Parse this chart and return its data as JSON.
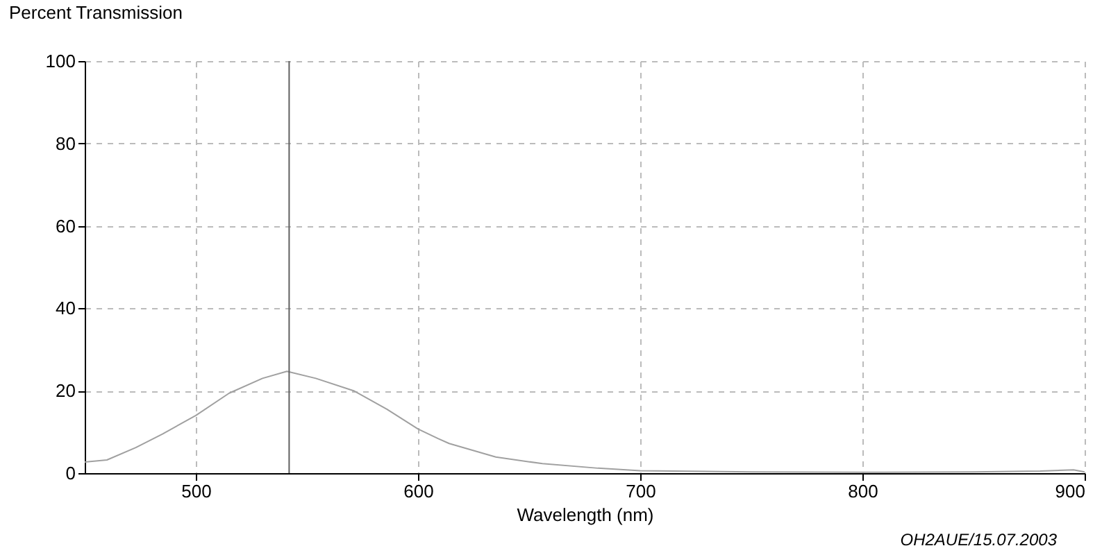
{
  "chart_data": {
    "type": "line",
    "xlabel": "Wavelength (nm)",
    "ylabel": "Percent Transmission",
    "x": [
      450,
      460,
      473,
      485,
      500,
      515,
      530,
      541,
      554,
      571,
      586,
      600,
      609,
      614,
      635,
      656,
      681,
      700,
      750,
      800,
      850,
      880,
      895,
      900
    ],
    "series": [
      {
        "color": "#a0a0a0",
        "values": [
          2.7,
          3.2,
          6.2,
          9.5,
          14,
          19.4,
          23,
          24.7,
          23,
          20,
          15.5,
          10.7,
          8.4,
          7.2,
          3.9,
          2.3,
          1.2,
          0.6,
          0.3,
          0.2,
          0.3,
          0.5,
          0.8,
          0.3
        ]
      }
    ],
    "xlim": [
      450,
      900
    ],
    "xticks": [
      500,
      600,
      700,
      800,
      900
    ],
    "ylim": [
      0,
      100
    ],
    "yticks": [
      0,
      20,
      40,
      60,
      80,
      100
    ],
    "grid": true,
    "marker": "none",
    "line_style": "solid",
    "ref_lines": [
      {
        "axis": "x",
        "value": 542,
        "color": "#606060"
      }
    ],
    "annotations": [
      "OH2AUE/15.07.2003"
    ]
  }
}
